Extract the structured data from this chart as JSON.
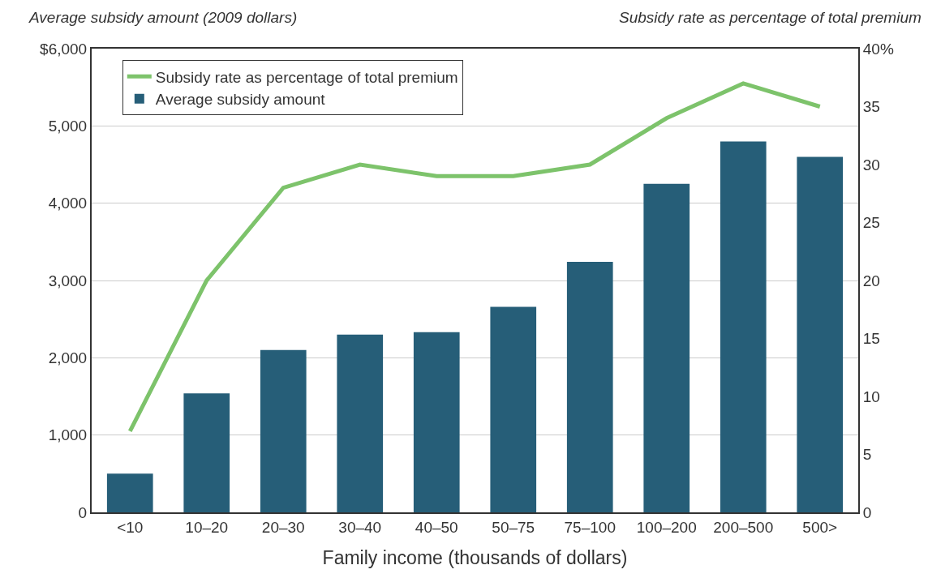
{
  "chart_data": {
    "type": "bar",
    "xlabel": "Family income (thousands of dollars)",
    "ylabel": "Average subsidy amount (2009 dollars)",
    "y2label": "Subsidy rate as percentage of total premium",
    "categories": [
      "<10",
      "10–20",
      "20–30",
      "30–40",
      "40–50",
      "50–75",
      "75–100",
      "100–200",
      "200–500",
      "500>"
    ],
    "series": [
      {
        "name": "Subsidy rate as percentage of total premium",
        "type": "line",
        "axis": "y2",
        "color": "#7dc36b",
        "values": [
          7,
          20,
          28,
          30,
          29,
          29,
          30,
          34,
          37,
          35
        ]
      },
      {
        "name": "Average subsidy amount",
        "color": "#265e78",
        "values": [
          500,
          1540,
          2100,
          2300,
          2330,
          2660,
          3240,
          4250,
          4800,
          4600
        ]
      }
    ],
    "ylim": [
      0,
      6000
    ],
    "yticks": [
      0,
      {
        "value": 1000,
        "label": "1,000"
      },
      {
        "value": 2000,
        "label": "2,000"
      },
      {
        "value": 3000,
        "label": "3,000"
      },
      {
        "value": 4000,
        "label": "4,000"
      },
      {
        "value": 5000,
        "label": "5,000"
      },
      {
        "value": 6000,
        "label": "$6,000"
      }
    ],
    "y2lim": [
      0,
      40
    ],
    "y2ticks": [
      0,
      5,
      10,
      15,
      20,
      25,
      30,
      35,
      {
        "value": 40,
        "label": "40%"
      }
    ],
    "grid": "y",
    "legend": "top left",
    "marker": "none",
    "line_style": "solid"
  }
}
